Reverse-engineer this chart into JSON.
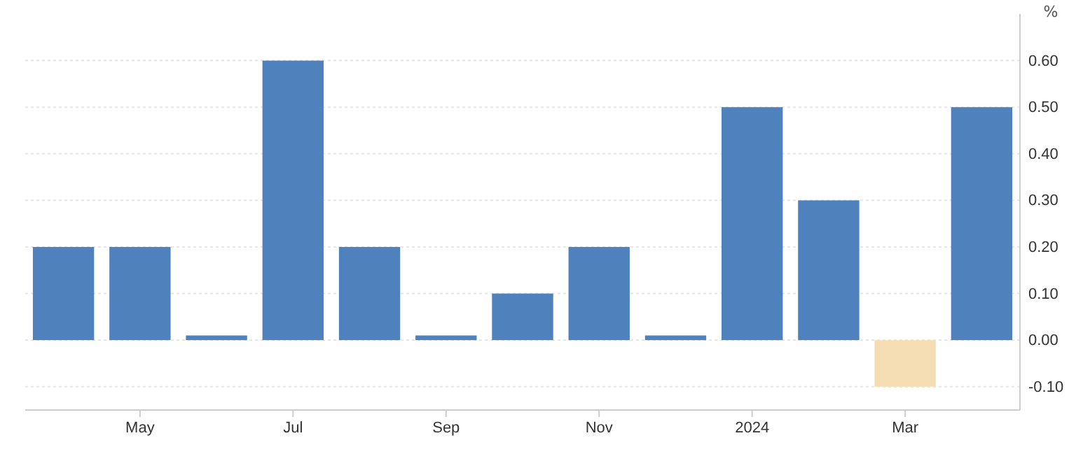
{
  "chart_data": {
    "type": "bar",
    "ylabel": "%",
    "categories": [
      null,
      "May",
      null,
      "Jul",
      null,
      "Sep",
      null,
      "Nov",
      null,
      "2024",
      null,
      "Mar",
      null
    ],
    "values": [
      0.2,
      0.2,
      0.01,
      0.6,
      0.2,
      0.01,
      0.1,
      0.2,
      0.01,
      0.5,
      0.3,
      -0.1,
      0.5
    ],
    "colors": [
      "#4f81bd",
      "#4f81bd",
      "#4f81bd",
      "#4f81bd",
      "#4f81bd",
      "#4f81bd",
      "#4f81bd",
      "#4f81bd",
      "#4f81bd",
      "#4f81bd",
      "#4f81bd",
      "#f5deb3",
      "#4f81bd"
    ],
    "ylim": [
      -0.15,
      0.7
    ],
    "yticks": [
      {
        "value": -0.1,
        "label": "-0.10"
      },
      {
        "value": 0,
        "label": "0.00"
      },
      {
        "value": 0.1,
        "label": "0.10"
      },
      {
        "value": 0.2,
        "label": "0.20"
      },
      {
        "value": 0.3,
        "label": "0.30"
      },
      {
        "value": 0.4,
        "label": "0.40"
      },
      {
        "value": 0.5,
        "label": "0.50"
      },
      {
        "value": 0.6,
        "label": "0.60"
      }
    ],
    "grid": "y"
  }
}
